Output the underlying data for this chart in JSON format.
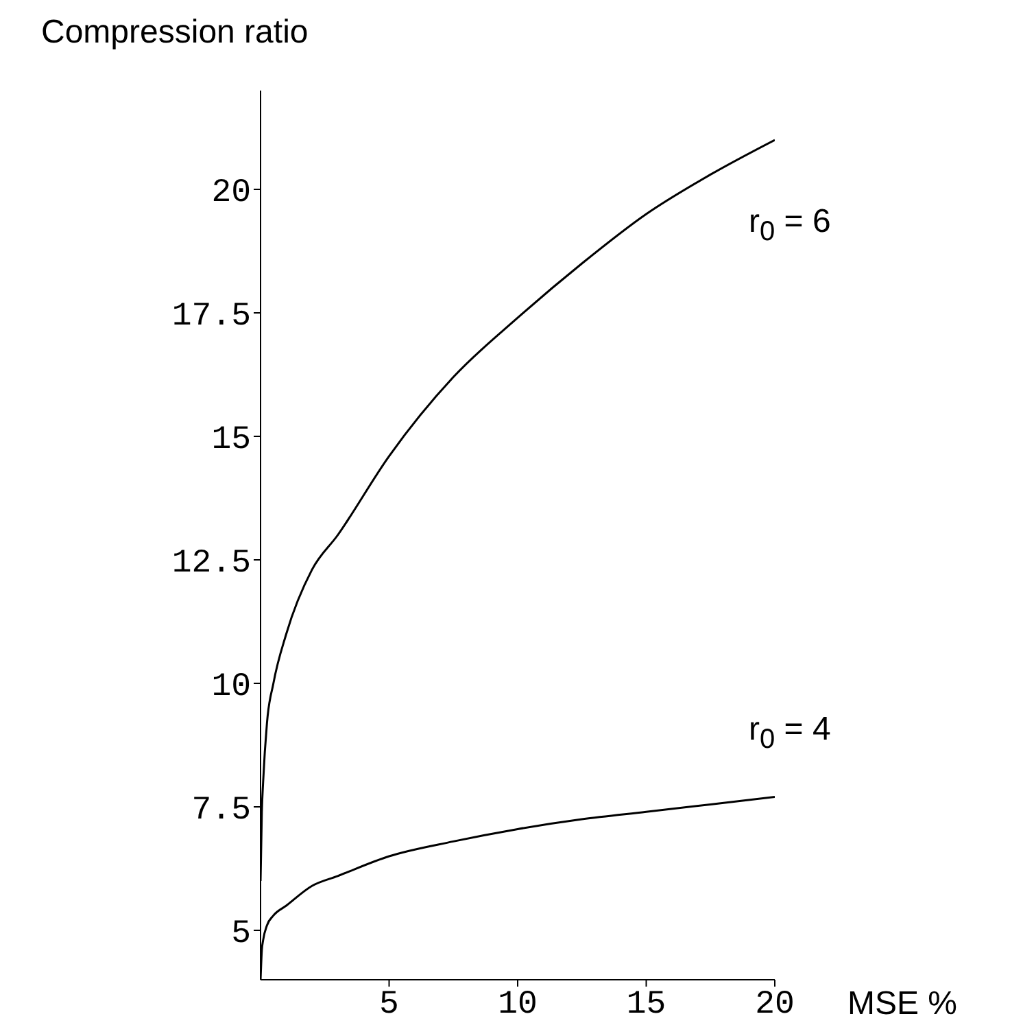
{
  "chart_data": {
    "type": "line",
    "xlabel": "MSE %",
    "ylabel": "Compression ratio",
    "xlim": [
      0,
      20
    ],
    "ylim": [
      4,
      22
    ],
    "xticks": [
      5,
      10,
      15,
      20
    ],
    "yticks": [
      5,
      7.5,
      10,
      12.5,
      15,
      17.5,
      20
    ],
    "grid": false,
    "marker": "none",
    "line_style": "solid",
    "series": [
      {
        "color": "#000000",
        "x": [
          0,
          0.05,
          0.1,
          0.25,
          0.5,
          1,
          2,
          3,
          5,
          7.5,
          10,
          12.5,
          15,
          17.5,
          20
        ],
        "values": [
          6,
          7.4,
          8,
          9.2,
          10,
          11,
          12.3,
          13,
          14.6,
          16.2,
          17.4,
          18.5,
          19.5,
          20.3,
          21
        ]
      },
      {
        "color": "#000000",
        "x": [
          0,
          0.05,
          0.1,
          0.25,
          0.5,
          1,
          2,
          3,
          5,
          7.5,
          10,
          12.5,
          15,
          17.5,
          20
        ],
        "values": [
          4,
          4.6,
          4.8,
          5.1,
          5.3,
          5.5,
          5.9,
          6.1,
          6.5,
          6.8,
          7.05,
          7.25,
          7.4,
          7.55,
          7.7
        ]
      }
    ],
    "annotations": [
      "r$_{0}$ = 6",
      "r$_{0}$ = 4"
    ]
  }
}
